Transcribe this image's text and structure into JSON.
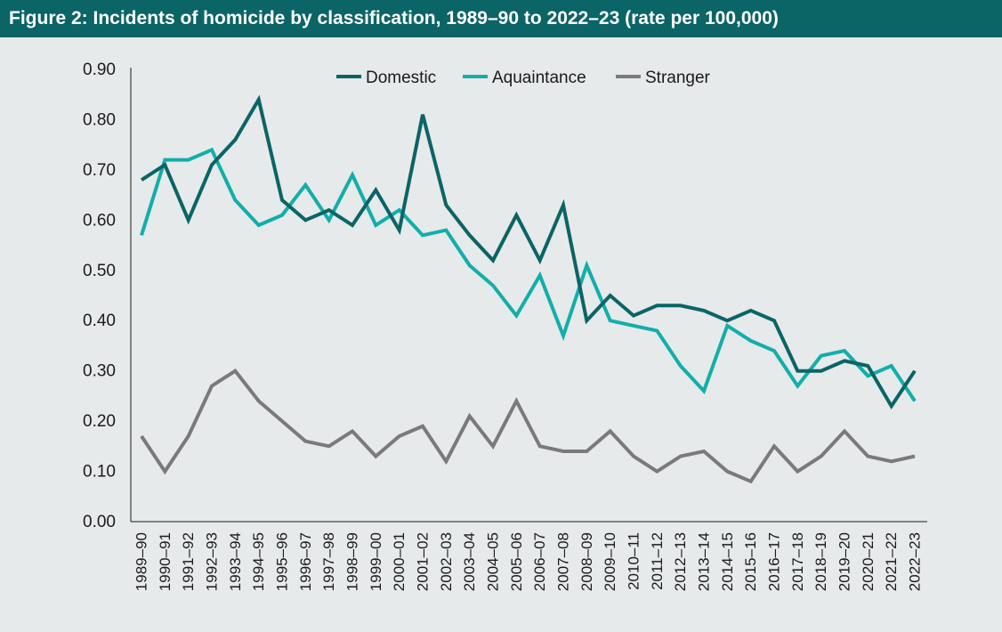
{
  "title": "Figure 2: Incidents of homicide by classification, 1989–90 to 2022–23 (rate per 100,000)",
  "colors": {
    "background": "#e6eaea",
    "title_bar": "#0b6466",
    "axis": "#1a1a1a"
  },
  "chart_data": {
    "type": "line",
    "title": "Figure 2: Incidents of homicide by classification, 1989–90 to 2022–23 (rate per 100,000)",
    "xlabel": "",
    "ylabel": "",
    "ylim": [
      0,
      0.9
    ],
    "yticks": [
      "0.00",
      "0.10",
      "0.20",
      "0.30",
      "0.40",
      "0.50",
      "0.60",
      "0.70",
      "0.80",
      "0.90"
    ],
    "grid": false,
    "legend_position": "top-center",
    "categories": [
      "1989–90",
      "1990–91",
      "1991–92",
      "1992–93",
      "1993–94",
      "1994–95",
      "1995–96",
      "1996–97",
      "1997–98",
      "1998–99",
      "1999–00",
      "2000–01",
      "2001–02",
      "2002–03",
      "2003–04",
      "2004–05",
      "2005–06",
      "2006–07",
      "2007–08",
      "2008–09",
      "2009–10",
      "2010–11",
      "2011–12",
      "2012–13",
      "2013–14",
      "2014–15",
      "2015–16",
      "2016–17",
      "2017–18",
      "2018–19",
      "2019–20",
      "2020–21",
      "2021–22",
      "2022–23"
    ],
    "series": [
      {
        "name": "Domestic",
        "color": "#0b6466",
        "values": [
          0.68,
          0.71,
          0.6,
          0.71,
          0.76,
          0.84,
          0.64,
          0.6,
          0.62,
          0.59,
          0.66,
          0.58,
          0.81,
          0.63,
          0.57,
          0.52,
          0.61,
          0.52,
          0.63,
          0.4,
          0.45,
          0.41,
          0.43,
          0.43,
          0.42,
          0.4,
          0.42,
          0.4,
          0.3,
          0.3,
          0.32,
          0.31,
          0.23,
          0.3
        ]
      },
      {
        "name": "Aquaintance",
        "color": "#12aeaa",
        "values": [
          0.57,
          0.72,
          0.72,
          0.74,
          0.64,
          0.59,
          0.61,
          0.67,
          0.6,
          0.69,
          0.59,
          0.62,
          0.57,
          0.58,
          0.51,
          0.47,
          0.41,
          0.49,
          0.37,
          0.51,
          0.4,
          0.39,
          0.38,
          0.31,
          0.26,
          0.39,
          0.36,
          0.34,
          0.27,
          0.33,
          0.34,
          0.29,
          0.31,
          0.24
        ]
      },
      {
        "name": "Stranger",
        "color": "#7a7a7c",
        "values": [
          0.17,
          0.1,
          0.17,
          0.27,
          0.3,
          0.24,
          0.2,
          0.16,
          0.15,
          0.18,
          0.13,
          0.17,
          0.19,
          0.12,
          0.21,
          0.15,
          0.24,
          0.15,
          0.14,
          0.14,
          0.18,
          0.13,
          0.1,
          0.13,
          0.14,
          0.1,
          0.08,
          0.15,
          0.1,
          0.13,
          0.18,
          0.13,
          0.12,
          0.13
        ]
      }
    ]
  }
}
